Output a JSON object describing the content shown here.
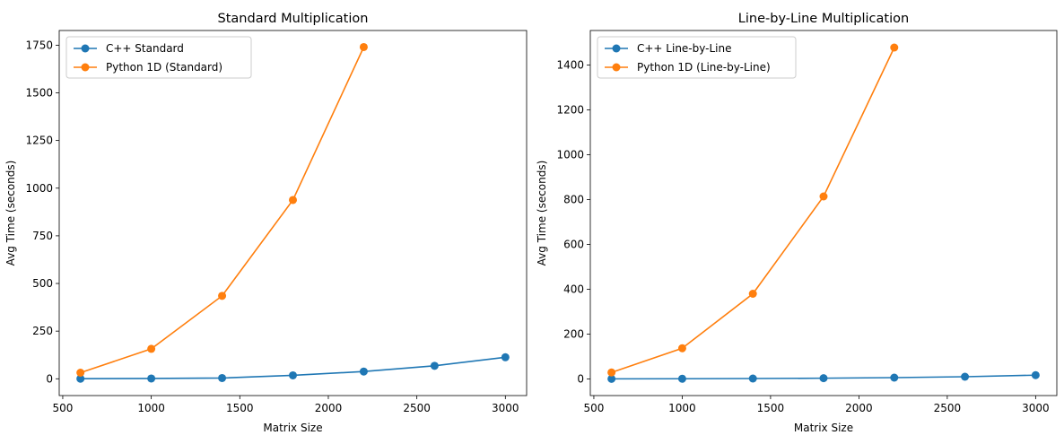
{
  "chart_data": [
    {
      "type": "line",
      "title": "Standard Multiplication",
      "xlabel": "Matrix Size",
      "ylabel": "Avg Time (seconds)",
      "xlim": [
        480,
        3120
      ],
      "ylim": [
        -88,
        1827
      ],
      "xticks": [
        500,
        1000,
        1500,
        2000,
        2500,
        3000
      ],
      "yticks": [
        0,
        250,
        500,
        750,
        1000,
        1250,
        1500,
        1750
      ],
      "legend_position": "upper-left",
      "series": [
        {
          "name": "C++ Standard",
          "color": "#1f77b4",
          "x": [
            600,
            1000,
            1400,
            1800,
            2200,
            2600,
            3000
          ],
          "y": [
            0.5,
            1.5,
            4,
            18,
            38,
            68,
            113
          ]
        },
        {
          "name": "Python 1D (Standard)",
          "color": "#ff7f0e",
          "x": [
            600,
            1000,
            1400,
            1800,
            2200
          ],
          "y": [
            32,
            157,
            435,
            938,
            1740
          ]
        }
      ]
    },
    {
      "type": "line",
      "title": "Line-by-Line Multiplication",
      "xlabel": "Matrix Size",
      "ylabel": "Avg Time (seconds)",
      "xlim": [
        480,
        3120
      ],
      "ylim": [
        -74,
        1554
      ],
      "xticks": [
        500,
        1000,
        1500,
        2000,
        2500,
        3000
      ],
      "yticks": [
        0,
        200,
        400,
        600,
        800,
        1000,
        1200,
        1400
      ],
      "legend_position": "upper-left",
      "series": [
        {
          "name": "C++ Line-by-Line",
          "color": "#1f77b4",
          "x": [
            600,
            1000,
            1400,
            1800,
            2200,
            2600,
            3000
          ],
          "y": [
            0.5,
            1,
            2,
            3.5,
            6,
            10,
            17
          ]
        },
        {
          "name": "Python 1D (Line-by-Line)",
          "color": "#ff7f0e",
          "x": [
            600,
            1000,
            1400,
            1800,
            2200
          ],
          "y": [
            29,
            137,
            380,
            814,
            1478
          ]
        }
      ]
    }
  ]
}
